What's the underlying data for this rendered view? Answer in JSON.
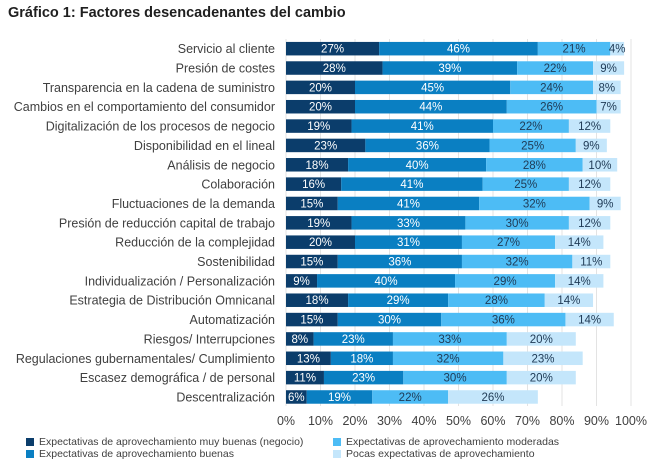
{
  "chart_data": {
    "type": "bar",
    "orientation": "horizontal",
    "stacked": true,
    "title": "Gráfico 1: Factores desencadenantes del cambio",
    "xlabel": "",
    "ylabel": "",
    "xlim": [
      0,
      100
    ],
    "x_ticks": [
      "0%",
      "10%",
      "20%",
      "30%",
      "40%",
      "50%",
      "60%",
      "70%",
      "80%",
      "90%",
      "100%"
    ],
    "grid": true,
    "legend_position": "bottom",
    "categories": [
      "Servicio al cliente",
      "Presión de costes",
      "Transparencia en la cadena de suministro",
      "Cambios en el comportamiento del consumidor",
      "Digitalización de los procesos de negocio",
      "Disponibilidad en el lineal",
      "Análisis de negocio",
      "Colaboración",
      "Fluctuaciones de la demanda",
      "Presión de reducción capital de trabajo",
      "Reducción de la complejidad",
      "Sostenibilidad",
      "Individualización / Personalización",
      "Estrategia de Distribución Omnicanal",
      "Automatización",
      "Riesgos/ Interrupciones",
      "Regulaciones gubernamentales/ Cumplimiento",
      "Escasez demográfica / de personal",
      "Descentralización"
    ],
    "series": [
      {
        "name": "Expectativas de aprovechamiento muy buenas (negocio)",
        "color": "#0b3d6b",
        "label_color": "#ffffff",
        "values": [
          27,
          28,
          20,
          20,
          19,
          23,
          18,
          16,
          15,
          19,
          20,
          15,
          9,
          18,
          15,
          8,
          13,
          11,
          6
        ]
      },
      {
        "name": "Expectativas de aprovechamiento buenas",
        "color": "#0a7fc2",
        "label_color": "#ffffff",
        "values": [
          46,
          39,
          45,
          44,
          41,
          36,
          40,
          41,
          41,
          33,
          31,
          36,
          40,
          29,
          30,
          23,
          18,
          23,
          19
        ]
      },
      {
        "name": "Expectativas de aprovechamiento moderadas",
        "color": "#4dbcf5",
        "label_color": "#1f3a55",
        "values": [
          21,
          22,
          24,
          26,
          22,
          25,
          28,
          25,
          32,
          30,
          27,
          32,
          29,
          28,
          36,
          33,
          32,
          30,
          22
        ]
      },
      {
        "name": "Pocas expectativas de aprovechamiento",
        "color": "#c4e6fb",
        "label_color": "#1f3a55",
        "values": [
          4,
          9,
          8,
          7,
          12,
          9,
          10,
          12,
          9,
          12,
          14,
          11,
          14,
          14,
          14,
          20,
          23,
          20,
          26
        ]
      }
    ],
    "value_suffix": "%"
  },
  "legend": [
    {
      "label": "Expectativas de aprovechamiento muy buenas (negocio)"
    },
    {
      "label": "Expectativas de aprovechamiento moderadas"
    },
    {
      "label": "Expectativas de aprovechamiento buenas"
    },
    {
      "label": "Pocas expectativas de aprovechamiento"
    }
  ]
}
